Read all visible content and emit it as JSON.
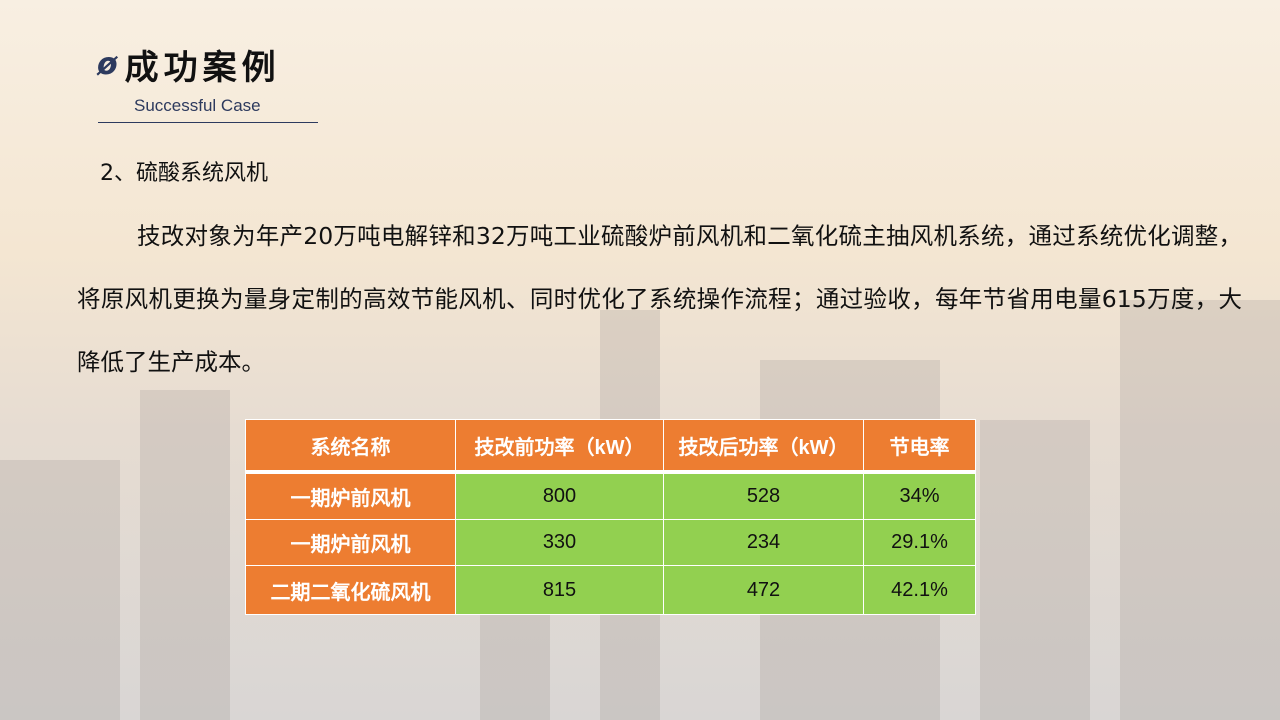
{
  "header": {
    "icon": "slash-circle-icon",
    "title": "成功案例",
    "subtitle": "Successful Case"
  },
  "section_heading": "2、硫酸系统风机",
  "paragraph": "技改对象为年产20万吨电解锌和32万吨工业硫酸炉前风机和二氧化硫主抽风机系统，通过系统优化调整，将原风机更换为量身定制的高效节能风机、同时优化了系统操作流程；通过验收，每年节省用电量615万度，大降低了生产成本。",
  "table": {
    "columns": [
      "系统名称",
      "技改前功率（kW）",
      "技改后功率（kW）",
      "节电率"
    ],
    "rows": [
      [
        "一期炉前风机",
        "800",
        "528",
        "34%"
      ],
      [
        "一期炉前风机",
        "330",
        "234",
        "29.1%"
      ],
      [
        "二期二氧化硫风机",
        "815",
        "472",
        "42.1%"
      ]
    ]
  },
  "colors": {
    "header_orange": "#ED7D31",
    "cell_green": "#92D050",
    "accent_navy": "#2d3a5e"
  }
}
